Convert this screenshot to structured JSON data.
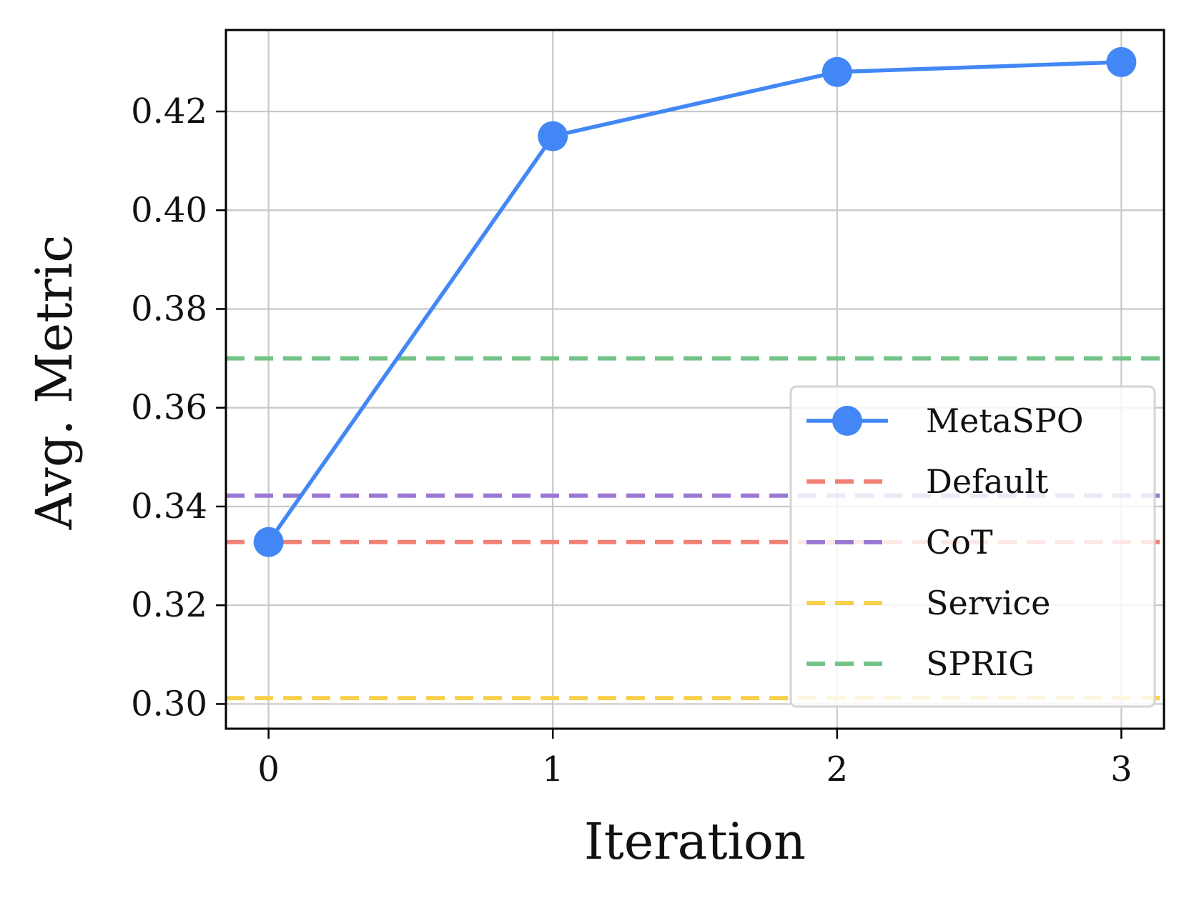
{
  "chart_data": {
    "type": "line",
    "title": "",
    "xlabel": "Iteration",
    "ylabel": "Avg. Metric",
    "x": [
      0,
      1,
      2,
      3
    ],
    "x_ticks": [
      0,
      1,
      2,
      3
    ],
    "x_tick_labels": [
      "0",
      "1",
      "2",
      "3"
    ],
    "xlim": [
      -0.15,
      3.15
    ],
    "y_ticks": [
      0.3,
      0.32,
      0.34,
      0.36,
      0.38,
      0.4,
      0.42
    ],
    "y_tick_labels": [
      "0.30",
      "0.32",
      "0.34",
      "0.36",
      "0.38",
      "0.40",
      "0.42"
    ],
    "ylim": [
      0.295,
      0.4365
    ],
    "grid": true,
    "legend_position": "lower-right",
    "series": [
      {
        "name": "MetaSPO",
        "style": "solid-marker",
        "color": "#4287f5",
        "values": [
          0.3328,
          0.415,
          0.428,
          0.43
        ]
      }
    ],
    "baselines": [
      {
        "name": "Default",
        "value": 0.3328,
        "color": "#f08075",
        "style": "dashed"
      },
      {
        "name": "CoT",
        "value": 0.3422,
        "color": "#9b78d4",
        "style": "dashed"
      },
      {
        "name": "Service",
        "value": 0.3012,
        "color": "#f9d04e",
        "style": "dashed"
      },
      {
        "name": "SPRIG",
        "value": 0.37,
        "color": "#74c386",
        "style": "dashed"
      }
    ],
    "legend": [
      "MetaSPO",
      "Default",
      "CoT",
      "Service",
      "SPRIG"
    ]
  }
}
